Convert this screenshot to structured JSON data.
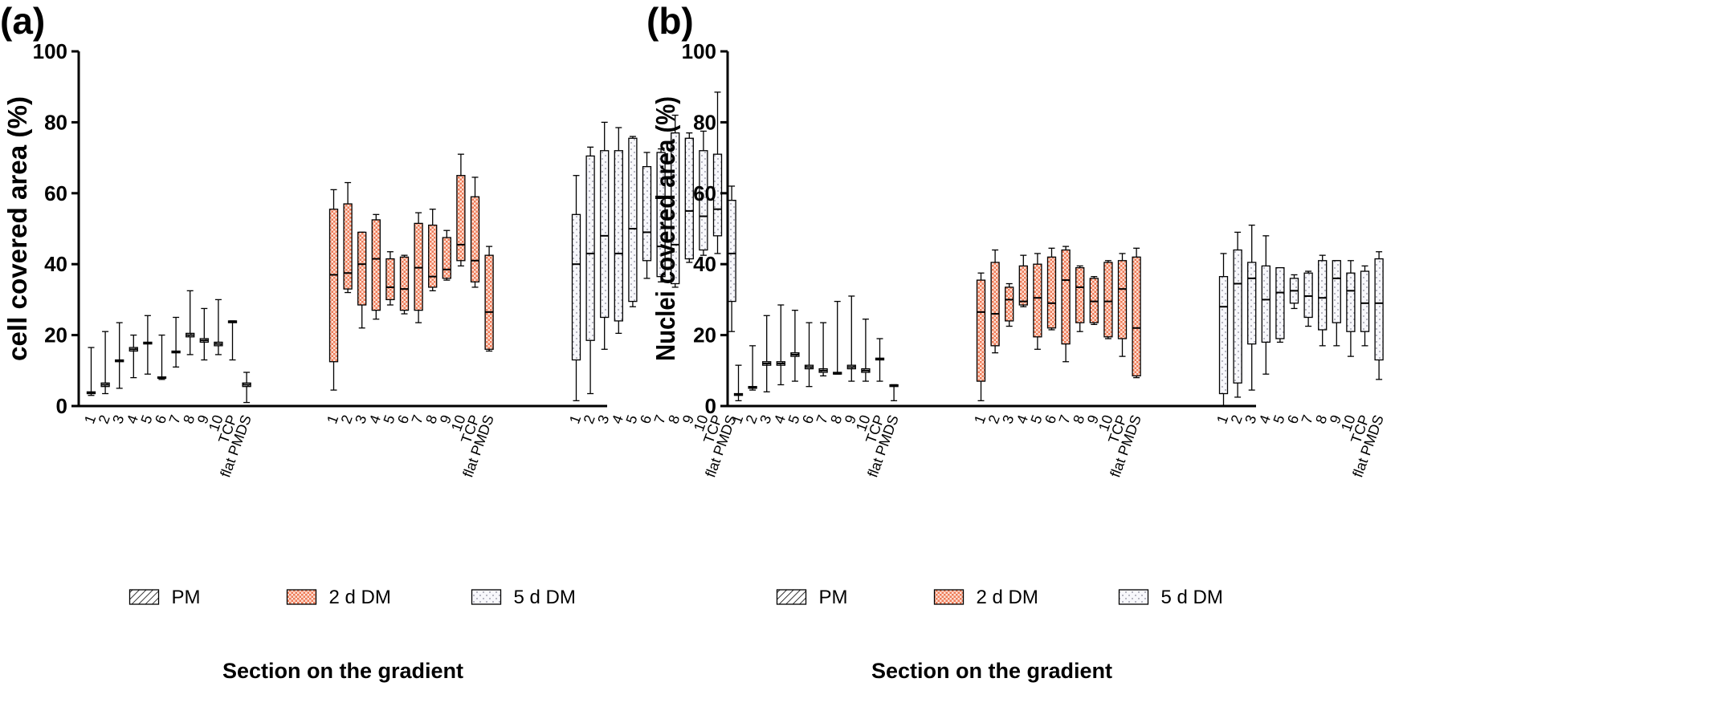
{
  "figure": {
    "panels": [
      {
        "letter": "(a)"
      },
      {
        "letter": "(b)"
      }
    ]
  },
  "colors": {
    "axis": "#000000",
    "pm_fill": "#ffffff",
    "pm_hatch": "#000000",
    "dm2_fill": "#fbe1d8",
    "dm2_check": "#ef7a55",
    "dm5_fill": "#f7f7fb",
    "dm5_dot": "#8a8a9a",
    "whisker": "#000000"
  },
  "chart_data": [
    {
      "type": "box",
      "panel": "(a)",
      "title": "",
      "ylabel": "cell covered area (%)",
      "xlabel": "Section on the gradient",
      "ylim": [
        0,
        100
      ],
      "yticks": [
        0,
        20,
        40,
        60,
        80,
        100
      ],
      "grid": false,
      "legend_position": "bottom",
      "categories": [
        "1",
        "2",
        "3",
        "4",
        "5",
        "6",
        "7",
        "8",
        "9",
        "10",
        "TCP",
        "flat PMDS"
      ],
      "series": [
        {
          "name": "PM",
          "pattern": "hatch",
          "boxes": [
            {
              "min": 3,
              "q1": 3.5,
              "median": 3.8,
              "q3": 4,
              "max": 16.5
            },
            {
              "min": 3.5,
              "q1": 5.5,
              "median": 6,
              "q3": 6.5,
              "max": 21
            },
            {
              "min": 5,
              "q1": 12.5,
              "median": 12.8,
              "q3": 13,
              "max": 23.5
            },
            {
              "min": 8,
              "q1": 15.5,
              "median": 16,
              "q3": 16.5,
              "max": 20
            },
            {
              "min": 9,
              "q1": 17.5,
              "median": 17.8,
              "q3": 18,
              "max": 25.5
            },
            {
              "min": 7.5,
              "q1": 7.8,
              "median": 8,
              "q3": 8.2,
              "max": 20
            },
            {
              "min": 11,
              "q1": 15,
              "median": 15.2,
              "q3": 15.5,
              "max": 25
            },
            {
              "min": 14.5,
              "q1": 19.5,
              "median": 20,
              "q3": 20.5,
              "max": 32.5
            },
            {
              "min": 13,
              "q1": 18,
              "median": 18.5,
              "q3": 19,
              "max": 27.5
            },
            {
              "min": 14.5,
              "q1": 17,
              "median": 17.5,
              "q3": 18,
              "max": 30
            },
            {
              "min": 13,
              "q1": 23.5,
              "median": 23.8,
              "q3": 24,
              "max": 24
            },
            {
              "min": 1,
              "q1": 5.5,
              "median": 6,
              "q3": 6.5,
              "max": 9.5
            }
          ]
        },
        {
          "name": "2 d DM",
          "pattern": "check",
          "boxes": [
            {
              "min": 4.5,
              "q1": 12.5,
              "median": 37,
              "q3": 55.5,
              "max": 61
            },
            {
              "min": 32,
              "q1": 33,
              "median": 37.5,
              "q3": 57,
              "max": 63
            },
            {
              "min": 22,
              "q1": 28.5,
              "median": 40,
              "q3": 49,
              "max": 49
            },
            {
              "min": 24.5,
              "q1": 27,
              "median": 41.5,
              "q3": 52.5,
              "max": 54
            },
            {
              "min": 28.5,
              "q1": 30,
              "median": 33.5,
              "q3": 41.5,
              "max": 43.5
            },
            {
              "min": 26,
              "q1": 27,
              "median": 33,
              "q3": 42,
              "max": 42.5
            },
            {
              "min": 23.5,
              "q1": 27,
              "median": 39,
              "q3": 51.5,
              "max": 54.5
            },
            {
              "min": 32.5,
              "q1": 33.5,
              "median": 36.5,
              "q3": 51,
              "max": 55.5
            },
            {
              "min": 35.5,
              "q1": 36,
              "median": 38.5,
              "q3": 47.5,
              "max": 49.5
            },
            {
              "min": 39.5,
              "q1": 41,
              "median": 45.5,
              "q3": 65,
              "max": 71
            },
            {
              "min": 33.5,
              "q1": 35,
              "median": 41,
              "q3": 59,
              "max": 64.5
            },
            {
              "min": 15.5,
              "q1": 16,
              "median": 26.5,
              "q3": 42.5,
              "max": 45
            }
          ]
        },
        {
          "name": "5 d DM",
          "pattern": "dots",
          "boxes": [
            {
              "min": 1.5,
              "q1": 13,
              "median": 40,
              "q3": 54,
              "max": 65
            },
            {
              "min": 3.5,
              "q1": 18.5,
              "median": 43,
              "q3": 70.5,
              "max": 73
            },
            {
              "min": 16,
              "q1": 25,
              "median": 48,
              "q3": 72,
              "max": 80
            },
            {
              "min": 20.5,
              "q1": 24,
              "median": 43,
              "q3": 72,
              "max": 78.5
            },
            {
              "min": 28,
              "q1": 29.5,
              "median": 50,
              "q3": 75.5,
              "max": 76
            },
            {
              "min": 36,
              "q1": 41,
              "median": 49,
              "q3": 67.5,
              "max": 71.5
            },
            {
              "min": 35,
              "q1": 36.5,
              "median": 45,
              "q3": 71.5,
              "max": 72.5
            },
            {
              "min": 33.5,
              "q1": 34.5,
              "median": 45.5,
              "q3": 77,
              "max": 82
            },
            {
              "min": 40.5,
              "q1": 41.5,
              "median": 55,
              "q3": 75.5,
              "max": 77
            },
            {
              "min": 42.5,
              "q1": 44,
              "median": 53.5,
              "q3": 72,
              "max": 77.5
            },
            {
              "min": 43,
              "q1": 48,
              "median": 55.5,
              "q3": 71,
              "max": 88.5
            },
            {
              "min": 21,
              "q1": 29.5,
              "median": 43,
              "q3": 58,
              "max": 62
            }
          ]
        }
      ]
    },
    {
      "type": "box",
      "panel": "(b)",
      "title": "",
      "ylabel": "Nuclei covered area (%)",
      "xlabel": "Section on the gradient",
      "ylim": [
        0,
        100
      ],
      "yticks": [
        0,
        20,
        40,
        60,
        80,
        100
      ],
      "grid": false,
      "legend_position": "bottom",
      "categories": [
        "1",
        "2",
        "3",
        "4",
        "5",
        "6",
        "7",
        "8",
        "9",
        "10",
        "TCP",
        "flat PMDS"
      ],
      "series": [
        {
          "name": "PM",
          "pattern": "hatch",
          "boxes": [
            {
              "min": 1.5,
              "q1": 3,
              "median": 3.2,
              "q3": 3.5,
              "max": 11.5
            },
            {
              "min": 4.5,
              "q1": 5,
              "median": 5.2,
              "q3": 5.5,
              "max": 17
            },
            {
              "min": 4,
              "q1": 11.5,
              "median": 12,
              "q3": 12.5,
              "max": 25.5
            },
            {
              "min": 6,
              "q1": 11.5,
              "median": 12,
              "q3": 12.5,
              "max": 28.5
            },
            {
              "min": 7,
              "q1": 14,
              "median": 14.5,
              "q3": 15,
              "max": 27
            },
            {
              "min": 5.5,
              "q1": 10.5,
              "median": 11,
              "q3": 11.5,
              "max": 23.5
            },
            {
              "min": 8.5,
              "q1": 9.5,
              "median": 10,
              "q3": 10.5,
              "max": 23.5
            },
            {
              "min": 9,
              "q1": 9,
              "median": 9.2,
              "q3": 9.5,
              "max": 29.5
            },
            {
              "min": 7,
              "q1": 10.5,
              "median": 11,
              "q3": 11.5,
              "max": 31
            },
            {
              "min": 7,
              "q1": 9.5,
              "median": 10,
              "q3": 10.5,
              "max": 24.5
            },
            {
              "min": 7,
              "q1": 13,
              "median": 13.2,
              "q3": 13.5,
              "max": 19
            },
            {
              "min": 1.5,
              "q1": 5.5,
              "median": 5.8,
              "q3": 6,
              "max": 6
            }
          ]
        },
        {
          "name": "2 d DM",
          "pattern": "check",
          "boxes": [
            {
              "min": 1.5,
              "q1": 7,
              "median": 26.5,
              "q3": 35.5,
              "max": 37.5
            },
            {
              "min": 15,
              "q1": 17,
              "median": 26,
              "q3": 40.5,
              "max": 44
            },
            {
              "min": 22.5,
              "q1": 24,
              "median": 30,
              "q3": 33.5,
              "max": 34.5
            },
            {
              "min": 28,
              "q1": 28.5,
              "median": 29.5,
              "q3": 39.5,
              "max": 42.5
            },
            {
              "min": 16,
              "q1": 19.5,
              "median": 30.5,
              "q3": 40,
              "max": 43
            },
            {
              "min": 21.5,
              "q1": 22,
              "median": 29,
              "q3": 42,
              "max": 44.5
            },
            {
              "min": 12.5,
              "q1": 17.5,
              "median": 35.5,
              "q3": 44,
              "max": 45
            },
            {
              "min": 21,
              "q1": 23.5,
              "median": 33.5,
              "q3": 39,
              "max": 39.5
            },
            {
              "min": 23,
              "q1": 23.5,
              "median": 29.5,
              "q3": 36,
              "max": 36.5
            },
            {
              "min": 19,
              "q1": 19.5,
              "median": 29.5,
              "q3": 40.5,
              "max": 41
            },
            {
              "min": 14,
              "q1": 19,
              "median": 33,
              "q3": 41,
              "max": 43
            },
            {
              "min": 8,
              "q1": 8.5,
              "median": 22,
              "q3": 42,
              "max": 44.5
            }
          ]
        },
        {
          "name": "5 d DM",
          "pattern": "dots",
          "boxes": [
            {
              "min": 0,
              "q1": 3.5,
              "median": 28,
              "q3": 36.5,
              "max": 43
            },
            {
              "min": 2.5,
              "q1": 6.5,
              "median": 34.5,
              "q3": 44,
              "max": 49
            },
            {
              "min": 4.5,
              "q1": 17.5,
              "median": 36,
              "q3": 40.5,
              "max": 51
            },
            {
              "min": 9,
              "q1": 18,
              "median": 30,
              "q3": 39.5,
              "max": 48
            },
            {
              "min": 18,
              "q1": 19,
              "median": 32,
              "q3": 39,
              "max": 39
            },
            {
              "min": 27.5,
              "q1": 29,
              "median": 32.5,
              "q3": 36,
              "max": 37
            },
            {
              "min": 22.5,
              "q1": 25,
              "median": 31,
              "q3": 37.5,
              "max": 38
            },
            {
              "min": 17,
              "q1": 21.5,
              "median": 30.5,
              "q3": 41,
              "max": 42.5
            },
            {
              "min": 17,
              "q1": 23.5,
              "median": 36,
              "q3": 41,
              "max": 41
            },
            {
              "min": 14,
              "q1": 21,
              "median": 32.5,
              "q3": 37.5,
              "max": 41
            },
            {
              "min": 17,
              "q1": 21,
              "median": 29,
              "q3": 38,
              "max": 39.5
            },
            {
              "min": 7.5,
              "q1": 13,
              "median": 29,
              "q3": 41.5,
              "max": 43.5
            }
          ]
        }
      ]
    }
  ]
}
